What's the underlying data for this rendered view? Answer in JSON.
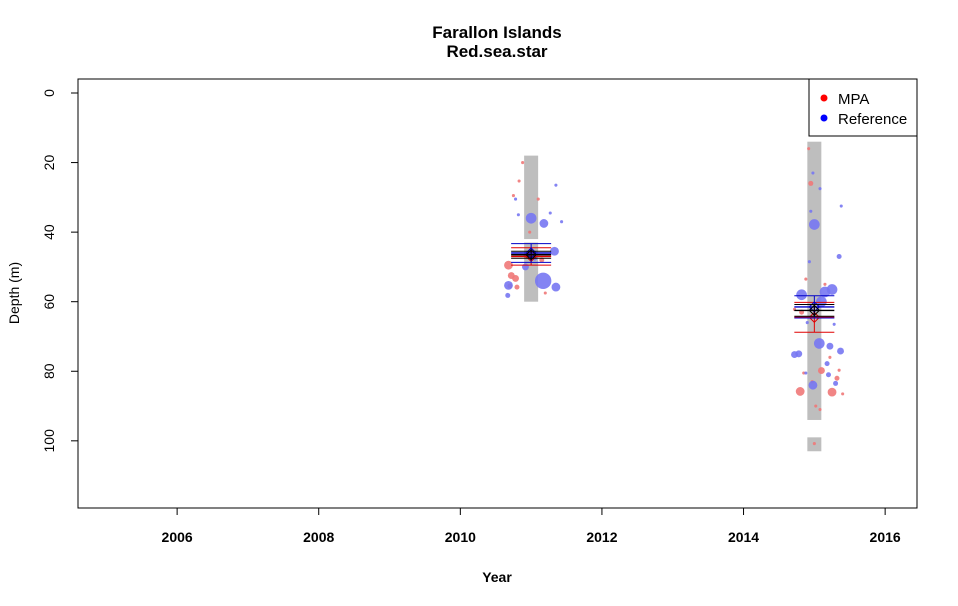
{
  "chart_data": {
    "type": "scatter",
    "title": "Farallon Islands",
    "subtitle": "Red.sea.star",
    "xlabel": "Year",
    "ylabel": "Depth (m)",
    "xlim": [
      2004.6,
      2016.45
    ],
    "ylim": [
      0,
      115
    ],
    "y_inverted": true,
    "x_ticks": [
      "2006",
      "2008",
      "2010",
      "2012",
      "2014",
      "2016"
    ],
    "y_ticks": [
      "0",
      "20",
      "40",
      "60",
      "80",
      "100"
    ],
    "grid": false,
    "legend": {
      "placement": "top-right",
      "entries": [
        {
          "label": "MPA",
          "color": "#ff0000"
        },
        {
          "label": "Reference",
          "color": "#0000ff"
        }
      ]
    },
    "colors": {
      "mpa_point": "#f07878",
      "ref_point": "#7777f2",
      "range_bar": "#bebebe",
      "mpa_error": "#e00000",
      "ref_error": "#0000c8",
      "combined_error": "#000000"
    },
    "range_bars": [
      {
        "x": 2011.0,
        "y_min": 18,
        "y_max": 42
      },
      {
        "x": 2011.0,
        "y_min": 43,
        "y_max": 60
      },
      {
        "x": 2015.0,
        "y_min": 14,
        "y_max": 94
      },
      {
        "x": 2015.0,
        "y_min": 99,
        "y_max": 103
      }
    ],
    "error_bars": [
      {
        "series": "MPA",
        "x": 2011.0,
        "mean": 47,
        "lower": 44.5,
        "upper": 49.5
      },
      {
        "series": "Reference",
        "x": 2011.0,
        "mean": 46,
        "lower": 43.3,
        "upper": 48.7
      },
      {
        "series": "Combined",
        "x": 2011.0,
        "mean": 46.5,
        "lower": 45.5,
        "upper": 47.5
      },
      {
        "series": "MPA",
        "x": 2015.0,
        "mean": 64.5,
        "lower": 60.2,
        "upper": 68.8
      },
      {
        "series": "Reference",
        "x": 2015.0,
        "mean": 61.5,
        "lower": 58.3,
        "upper": 64.7
      },
      {
        "series": "Combined",
        "x": 2015.0,
        "mean": 62.5,
        "lower": 60.8,
        "upper": 64.2
      }
    ],
    "series": [
      {
        "name": "MPA",
        "points": [
          {
            "x": 2010.68,
            "y": 49.5,
            "s": 4
          },
          {
            "x": 2010.72,
            "y": 52.5,
            "s": 3
          },
          {
            "x": 2010.78,
            "y": 53.3,
            "s": 3
          },
          {
            "x": 2010.7,
            "y": 55.5,
            "s": 2
          },
          {
            "x": 2010.8,
            "y": 55.8,
            "s": 2
          },
          {
            "x": 2010.83,
            "y": 25.3,
            "s": 1
          },
          {
            "x": 2010.75,
            "y": 29.5,
            "s": 1
          },
          {
            "x": 2010.88,
            "y": 20.0,
            "s": 1
          },
          {
            "x": 2010.98,
            "y": 40.0,
            "s": 1
          },
          {
            "x": 2011.1,
            "y": 30.5,
            "s": 1
          },
          {
            "x": 2010.93,
            "y": 46.8,
            "s": 2
          },
          {
            "x": 2011.15,
            "y": 48.0,
            "s": 2
          },
          {
            "x": 2011.2,
            "y": 57.5,
            "s": 1
          },
          {
            "x": 2014.8,
            "y": 85.8,
            "s": 4
          },
          {
            "x": 2015.25,
            "y": 86.0,
            "s": 4
          },
          {
            "x": 2015.1,
            "y": 79.8,
            "s": 3
          },
          {
            "x": 2015.32,
            "y": 82.0,
            "s": 2
          },
          {
            "x": 2015.35,
            "y": 79.7,
            "s": 1
          },
          {
            "x": 2014.85,
            "y": 80.5,
            "s": 1
          },
          {
            "x": 2014.95,
            "y": 26.0,
            "s": 2
          },
          {
            "x": 2014.92,
            "y": 16.0,
            "s": 1
          },
          {
            "x": 2015.15,
            "y": 55.0,
            "s": 1
          },
          {
            "x": 2014.82,
            "y": 63.0,
            "s": 2
          },
          {
            "x": 2014.72,
            "y": 62.2,
            "s": 1
          },
          {
            "x": 2014.88,
            "y": 53.5,
            "s": 1
          },
          {
            "x": 2015.02,
            "y": 90.0,
            "s": 1
          },
          {
            "x": 2015.08,
            "y": 91.0,
            "s": 1
          },
          {
            "x": 2014.97,
            "y": 83.0,
            "s": 1
          },
          {
            "x": 2015.4,
            "y": 86.5,
            "s": 1
          },
          {
            "x": 2015.22,
            "y": 76.0,
            "s": 1
          },
          {
            "x": 2015.0,
            "y": 100.8,
            "s": 1
          }
        ]
      },
      {
        "name": "Reference",
        "points": [
          {
            "x": 2011.0,
            "y": 36.0,
            "s": 5
          },
          {
            "x": 2011.18,
            "y": 37.5,
            "s": 4
          },
          {
            "x": 2011.33,
            "y": 45.5,
            "s": 4
          },
          {
            "x": 2011.17,
            "y": 54.0,
            "s": 8
          },
          {
            "x": 2011.35,
            "y": 55.8,
            "s": 4
          },
          {
            "x": 2010.68,
            "y": 55.3,
            "s": 4
          },
          {
            "x": 2010.67,
            "y": 58.2,
            "s": 2
          },
          {
            "x": 2010.92,
            "y": 50.0,
            "s": 3
          },
          {
            "x": 2011.05,
            "y": 47.5,
            "s": 2
          },
          {
            "x": 2011.35,
            "y": 26.5,
            "s": 1
          },
          {
            "x": 2011.27,
            "y": 34.5,
            "s": 1
          },
          {
            "x": 2011.43,
            "y": 37.0,
            "s": 1
          },
          {
            "x": 2010.82,
            "y": 35.0,
            "s": 1
          },
          {
            "x": 2010.78,
            "y": 30.5,
            "s": 1
          },
          {
            "x": 2015.0,
            "y": 37.8,
            "s": 5
          },
          {
            "x": 2015.25,
            "y": 56.5,
            "s": 5
          },
          {
            "x": 2015.15,
            "y": 57.2,
            "s": 5
          },
          {
            "x": 2014.82,
            "y": 58.0,
            "s": 5
          },
          {
            "x": 2015.1,
            "y": 60.0,
            "s": 5
          },
          {
            "x": 2015.07,
            "y": 72.0,
            "s": 5
          },
          {
            "x": 2014.98,
            "y": 84.0,
            "s": 4
          },
          {
            "x": 2014.78,
            "y": 75.0,
            "s": 3
          },
          {
            "x": 2014.72,
            "y": 75.2,
            "s": 3
          },
          {
            "x": 2015.22,
            "y": 72.8,
            "s": 3
          },
          {
            "x": 2015.37,
            "y": 74.2,
            "s": 3
          },
          {
            "x": 2015.18,
            "y": 77.8,
            "s": 2
          },
          {
            "x": 2015.3,
            "y": 83.5,
            "s": 2
          },
          {
            "x": 2015.2,
            "y": 81.0,
            "s": 2
          },
          {
            "x": 2015.35,
            "y": 47.0,
            "s": 2
          },
          {
            "x": 2014.95,
            "y": 34.0,
            "s": 1
          },
          {
            "x": 2014.93,
            "y": 48.5,
            "s": 1
          },
          {
            "x": 2015.38,
            "y": 32.5,
            "s": 1
          },
          {
            "x": 2014.88,
            "y": 80.5,
            "s": 1
          },
          {
            "x": 2015.08,
            "y": 27.5,
            "s": 1
          },
          {
            "x": 2014.98,
            "y": 23.0,
            "s": 1
          },
          {
            "x": 2014.9,
            "y": 66.0,
            "s": 1
          },
          {
            "x": 2015.28,
            "y": 66.5,
            "s": 1
          }
        ]
      }
    ]
  }
}
